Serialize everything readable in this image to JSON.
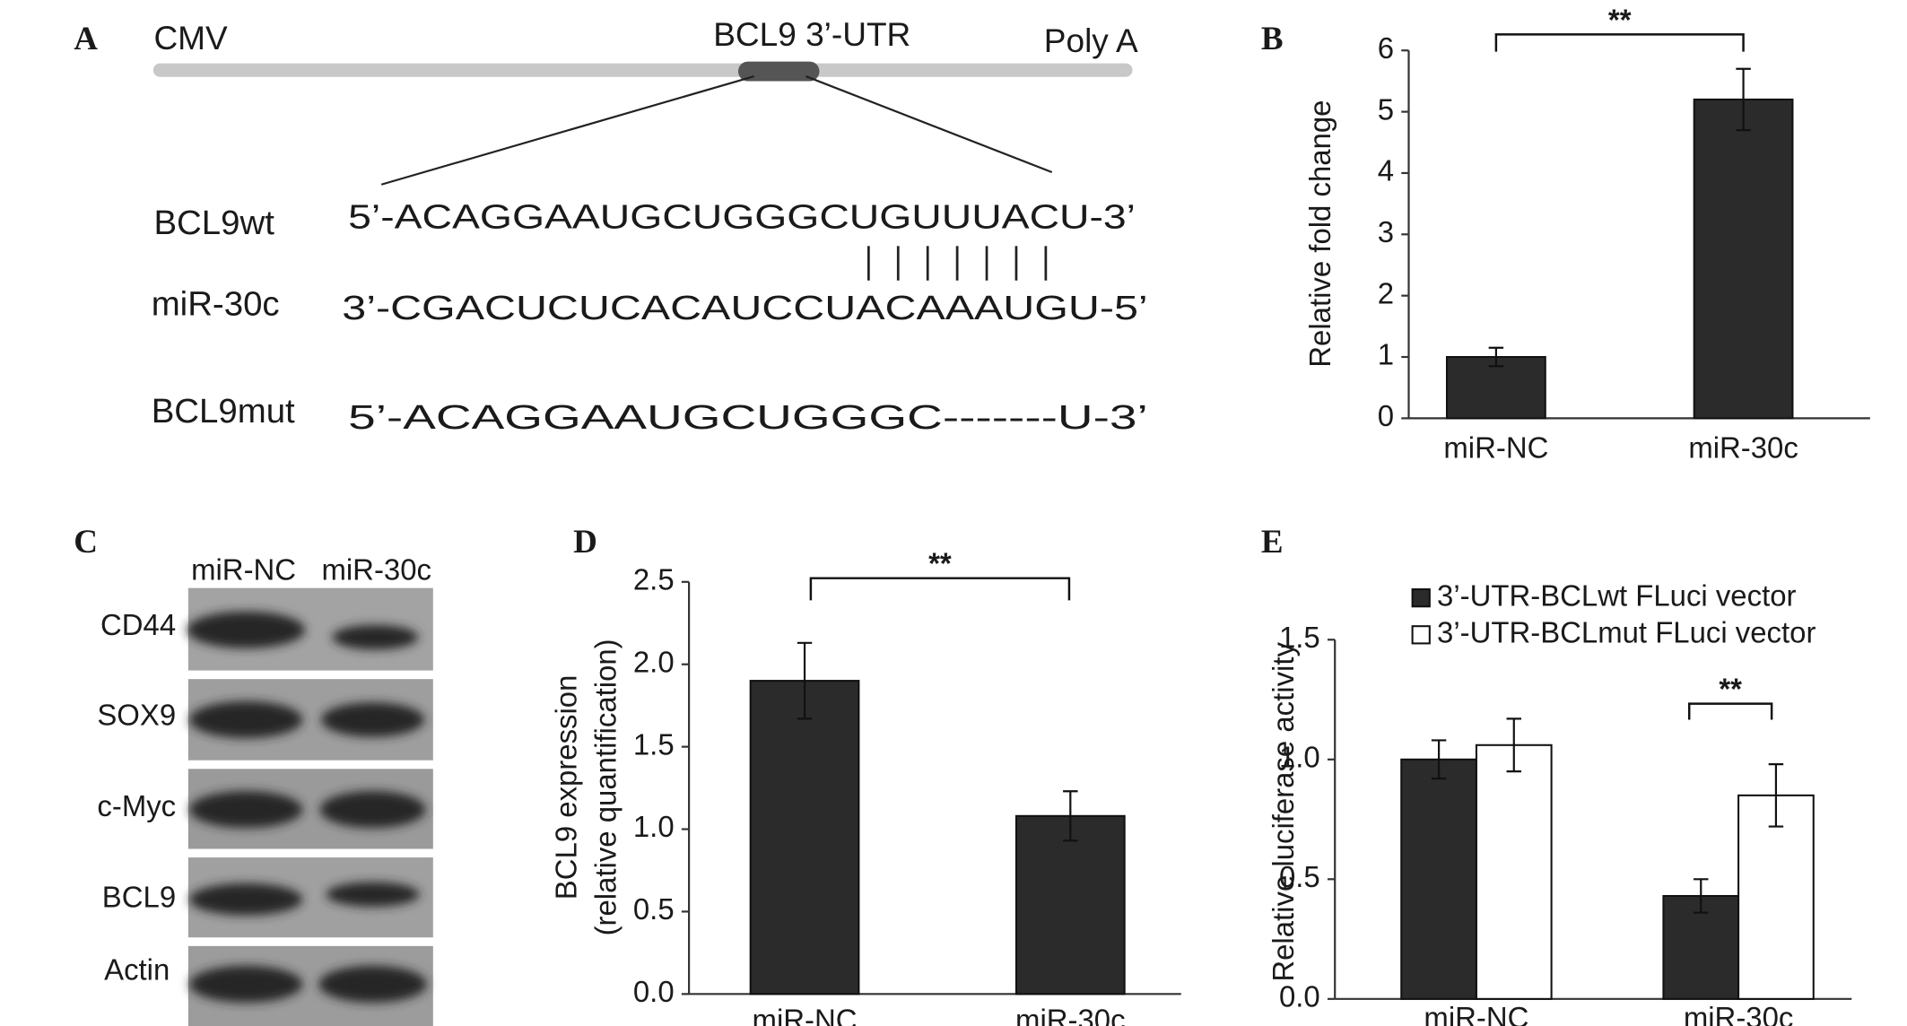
{
  "panel_labels": [
    "A",
    "B",
    "C",
    "D",
    "E"
  ],
  "construct": {
    "left": "CMV",
    "insert": "BCL9 3’-UTR",
    "right": "Poly A"
  },
  "sequences": [
    {
      "name": "BCL9wt",
      "seq": "5’-ACAGGAAUGCUGGGCUGUUUACU-3’"
    },
    {
      "name": "miR-30c",
      "seq": "3’-CGACUCUCACAUCCUACAAAUGU-5’"
    },
    {
      "name": "BCL9mut",
      "seq": "5’-ACAGGAAUGCUGGGC-------U-3’"
    }
  ],
  "blot": {
    "columns": [
      "miR-NC",
      "miR-30c"
    ],
    "rows": [
      "CD44",
      "SOX9",
      "c-Myc",
      "BCL9",
      "Actin"
    ]
  },
  "chart_data": [
    {
      "type": "bar",
      "ylabel": "Relative fold change",
      "categories": [
        "miR-NC",
        "miR-30c"
      ],
      "series": [
        {
          "color": "#2b2b2b",
          "values": [
            1.0,
            5.2
          ],
          "errors": [
            0.15,
            0.5
          ]
        }
      ],
      "ylim": [
        0,
        6
      ],
      "yticks": [
        0,
        1,
        2,
        3,
        4,
        5,
        6
      ],
      "annotation": "**"
    },
    {
      "type": "bar",
      "ylabel": [
        "BCL9 expression",
        "(relative quantification)"
      ],
      "categories": [
        "miR-NC",
        "miR-30c"
      ],
      "series": [
        {
          "color": "#2b2b2b",
          "values": [
            1.9,
            1.08
          ],
          "errors": [
            0.23,
            0.15
          ]
        }
      ],
      "ylim": [
        0,
        2.5
      ],
      "yticks": [
        {
          "value": 0,
          "label": "0.0"
        },
        {
          "value": 0.5,
          "label": "0.5"
        },
        {
          "value": 1,
          "label": "1.0"
        },
        {
          "value": 1.5,
          "label": "1.5"
        },
        {
          "value": 2,
          "label": "2.0"
        },
        {
          "value": 2.5,
          "label": "2.5"
        }
      ],
      "annotation": "**"
    },
    {
      "type": "bar",
      "ylabel": "Relative luciferase activity",
      "categories": [
        "miR-NC",
        "miR-30c"
      ],
      "series": [
        {
          "name": "3’-UTR-BCLwt FLuci vector",
          "color": "#2b2b2b",
          "values": [
            1.0,
            0.43
          ],
          "errors": [
            0.08,
            0.07
          ]
        },
        {
          "name": "3’-UTR-BCLmut FLuci vector",
          "color": "#ffffff",
          "values": [
            1.06,
            0.85
          ],
          "errors": [
            0.11,
            0.13
          ]
        }
      ],
      "ylim": [
        0,
        1.5
      ],
      "yticks": [
        {
          "value": 0,
          "label": "0.0"
        },
        {
          "value": 0.5,
          "label": "0.5"
        },
        {
          "value": 1,
          "label": "1.0"
        },
        {
          "value": 1.5,
          "label": "1.5"
        }
      ],
      "annotation": "**"
    }
  ]
}
